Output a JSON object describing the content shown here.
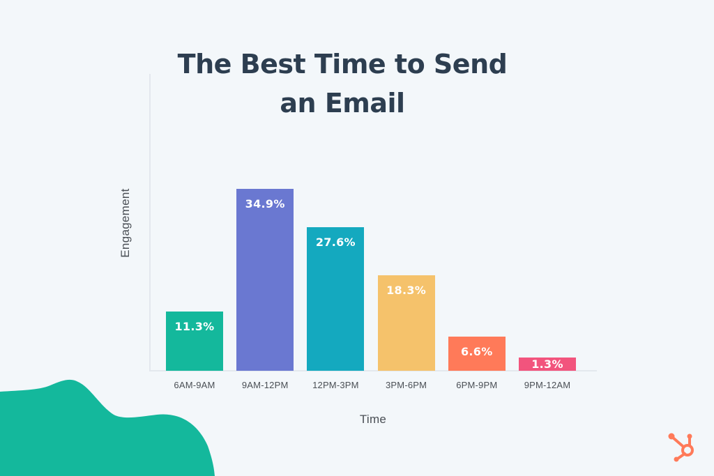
{
  "chart_data": {
    "type": "bar",
    "title": "The Best Time to Send an Email",
    "xlabel": "Time",
    "ylabel": "Engagement",
    "categories": [
      "6AM-9AM",
      "9AM-12PM",
      "12PM-3PM",
      "3PM-6PM",
      "6PM-9PM",
      "9PM-12AM"
    ],
    "values": [
      11.3,
      34.9,
      27.6,
      18.3,
      6.6,
      1.3
    ],
    "value_labels": [
      "11.3%",
      "34.9%",
      "27.6%",
      "18.3%",
      "6.6%",
      "1.3%"
    ],
    "unit": "%",
    "colors": [
      "#14b89c",
      "#6a78d1",
      "#14a9bf",
      "#f5c26b",
      "#ff7a59",
      "#f2547d"
    ],
    "ylim": [
      0,
      40
    ],
    "grid": false,
    "legend": null,
    "y_ticks_shown": false
  },
  "branding": {
    "logo": "hubspot-sprocket-icon",
    "logo_color": "#ff7a59",
    "blob_color": "#14b89c"
  },
  "colors": {
    "background": "#f3f7fa",
    "title": "#2d3e50",
    "axis": "#e3e8ee",
    "label_text": "#4a4f55"
  }
}
